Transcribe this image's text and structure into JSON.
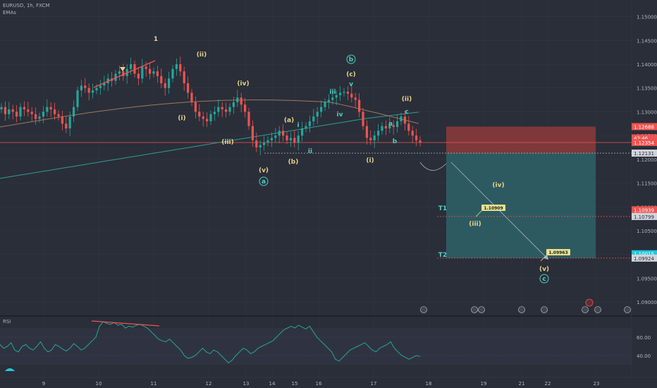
{
  "header": {
    "symbol": "EURUSD, 1h, FXCM",
    "indicator": "EMAs",
    "rsi_label": "RSI"
  },
  "colors": {
    "background": "#2a2e39",
    "candle_up": "#26a69a",
    "candle_down": "#ef5350",
    "ema_slow": "#2b9e95",
    "ema_fast": "#a0785a",
    "wave_yellow": "#e6d28a",
    "wave_cyan": "#4dd0c4",
    "stop_zone": "#8d3a3a",
    "target_zone": "#2e5f66",
    "price_axis_text": "#b2b5be"
  },
  "chart_data": {
    "type": "candlestick",
    "price_axis": {
      "ylim": [
        1.0875,
        1.1535
      ],
      "ticks": [
        "1.15500",
        "1.15000",
        "1.14500",
        "1.14000",
        "1.13500",
        "1.13000",
        "1.12500",
        "1.12000",
        "1.11500",
        "1.11000",
        "1.10500",
        "1.10000",
        "1.09500",
        "1.09000"
      ]
    },
    "time_axis": {
      "labels": [
        "9",
        "10",
        "11",
        "12",
        "13",
        "14",
        "15",
        "16",
        "17",
        "18",
        "19",
        "21",
        "22",
        "23"
      ]
    },
    "price_labels": [
      {
        "text": "1.12688",
        "value": 1.12688,
        "color": "#ef5350"
      },
      {
        "text": "42:46",
        "value": 1.1245,
        "color": "#ef5350"
      },
      {
        "text": "1.12354",
        "value": 1.12354,
        "color": "#ef5350"
      },
      {
        "text": "1.12131",
        "value": 1.12131,
        "color": "#2a2e39",
        "bg": "#d1d4dc"
      },
      {
        "text": "1.10939",
        "value": 1.10939,
        "color": "#ef5350"
      },
      {
        "text": "1.10799",
        "value": 1.10799,
        "color": "#2a2e39",
        "bg": "#d1d4dc"
      },
      {
        "text": "1.10015",
        "value": 1.10015,
        "color": "#26c6da"
      },
      {
        "text": "1.09924",
        "value": 1.09924,
        "color": "#2a2e39",
        "bg": "#d1d4dc"
      }
    ],
    "trade_zones": {
      "entry": 1.12131,
      "stop": 1.12688,
      "target": 1.09924,
      "targets": [
        {
          "label": "T1",
          "value": 1.10799,
          "tag": "1.10909"
        },
        {
          "label": "T2",
          "value": 1.09924,
          "tag": "1.09963"
        }
      ]
    },
    "wave_labels": [
      {
        "text": "1",
        "color": "yellow"
      },
      {
        "text": "(ii)",
        "color": "yellow"
      },
      {
        "text": "(i)",
        "color": "yellow"
      },
      {
        "text": "(iv)",
        "color": "yellow"
      },
      {
        "text": "(iii)",
        "color": "yellow"
      },
      {
        "text": "(v)",
        "color": "yellow"
      },
      {
        "text": "a",
        "color": "cyan-circle"
      },
      {
        "text": "(a)",
        "color": "yellow"
      },
      {
        "text": "i",
        "color": "cyan"
      },
      {
        "text": "ii",
        "color": "cyan"
      },
      {
        "text": "(b)",
        "color": "yellow"
      },
      {
        "text": "b",
        "color": "cyan-circle"
      },
      {
        "text": "(c)",
        "color": "yellow"
      },
      {
        "text": "v",
        "color": "cyan"
      },
      {
        "text": "iii",
        "color": "cyan"
      },
      {
        "text": "iv",
        "color": "cyan"
      },
      {
        "text": "(i)",
        "color": "yellow"
      },
      {
        "text": "(ii)",
        "color": "yellow"
      },
      {
        "text": "c",
        "color": "cyan"
      },
      {
        "text": "a",
        "color": "cyan"
      },
      {
        "text": "b",
        "color": "cyan"
      },
      {
        "text": "(iv)",
        "color": "yellow"
      },
      {
        "text": "(iii)",
        "color": "yellow"
      },
      {
        "text": "(v)",
        "color": "yellow"
      },
      {
        "text": "c",
        "color": "cyan-circle"
      }
    ],
    "rsi": {
      "ticks": [
        "60.00",
        "40.00"
      ],
      "ylim": [
        20,
        80
      ],
      "values": [
        52,
        48,
        50,
        54,
        46,
        44,
        50,
        52,
        48,
        46,
        50,
        55,
        48,
        44,
        46,
        52,
        50,
        47,
        45,
        48,
        53,
        50,
        46,
        48,
        52,
        56,
        60,
        72,
        77,
        75,
        74,
        76,
        73,
        74,
        70,
        72,
        71,
        73,
        74,
        72,
        70,
        66,
        62,
        58,
        56,
        55,
        58,
        54,
        50,
        46,
        40,
        37,
        38,
        40,
        44,
        48,
        44,
        42,
        46,
        44,
        40,
        36,
        32,
        35,
        40,
        44,
        48,
        46,
        42,
        44,
        48,
        50,
        52,
        54,
        56,
        60,
        64,
        68,
        70,
        72,
        70,
        73,
        71,
        69,
        72,
        66,
        60,
        56,
        52,
        48,
        44,
        36,
        34,
        38,
        42,
        46,
        48,
        50,
        52,
        54,
        50,
        46,
        44,
        48,
        50,
        52,
        55,
        48,
        44,
        40,
        38,
        36,
        38,
        40,
        39
      ]
    },
    "candles_close": [
      1.131,
      1.1295,
      1.1305,
      1.13,
      1.129,
      1.131,
      1.1305,
      1.13,
      1.1295,
      1.1285,
      1.129,
      1.13,
      1.131,
      1.1305,
      1.1295,
      1.129,
      1.1275,
      1.1265,
      1.129,
      1.131,
      1.1345,
      1.1355,
      1.135,
      1.134,
      1.1345,
      1.135,
      1.1355,
      1.136,
      1.137,
      1.1365,
      1.138,
      1.1385,
      1.1375,
      1.139,
      1.14,
      1.138,
      1.137,
      1.1395,
      1.139,
      1.138,
      1.1385,
      1.1375,
      1.136,
      1.135,
      1.137,
      1.139,
      1.14,
      1.1385,
      1.136,
      1.134,
      1.132,
      1.13,
      1.129,
      1.1285,
      1.128,
      1.1295,
      1.13,
      1.131,
      1.1305,
      1.13,
      1.131,
      1.132,
      1.133,
      1.1315,
      1.13,
      1.127,
      1.124,
      1.1225,
      1.123,
      1.1235,
      1.124,
      1.1245,
      1.125,
      1.126,
      1.125,
      1.124,
      1.1245,
      1.1235,
      1.125,
      1.1265,
      1.127,
      1.128,
      1.129,
      1.13,
      1.131,
      1.132,
      1.1325,
      1.133,
      1.1335,
      1.134,
      1.1342,
      1.1338,
      1.133,
      1.1325,
      1.13,
      1.127,
      1.1245,
      1.124,
      1.125,
      1.126,
      1.127,
      1.1265,
      1.1272,
      1.1268,
      1.128,
      1.129,
      1.1275,
      1.126,
      1.125,
      1.124,
      1.1235
    ]
  },
  "events_row": {
    "icons": [
      "event-flag",
      "event-flag",
      "event-flag",
      "event-flag",
      "event-flag",
      "event-flag",
      "event-flag",
      "event-flag"
    ]
  }
}
